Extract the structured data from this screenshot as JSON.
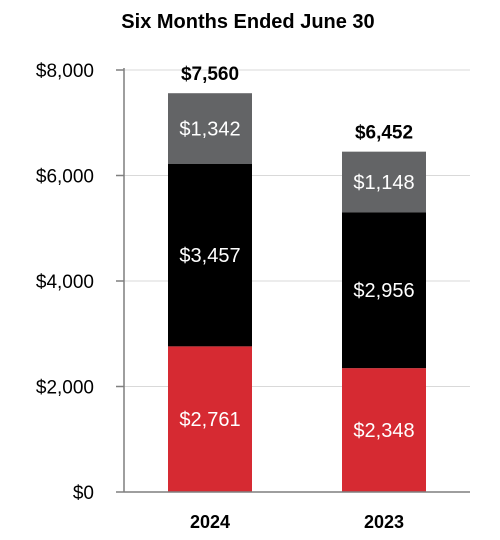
{
  "chart_data": {
    "type": "bar",
    "stacked": true,
    "title": "Six Months Ended June 30",
    "categories": [
      "2024",
      "2023"
    ],
    "series": [
      {
        "values": [
          2761,
          2348
        ],
        "labels": [
          "$2,761",
          "$2,348"
        ],
        "color": "#d62a32"
      },
      {
        "values": [
          3457,
          2956
        ],
        "labels": [
          "$3,457",
          "$2,956"
        ],
        "color": "#000000"
      },
      {
        "values": [
          1342,
          1148
        ],
        "labels": [
          "$1,342",
          "$1,148"
        ],
        "color": "#636466"
      }
    ],
    "totals": [
      7560,
      6452
    ],
    "total_labels": [
      "$7,560",
      "$6,452"
    ],
    "ylim": [
      0,
      8000
    ],
    "yticks": [
      0,
      2000,
      4000,
      6000,
      8000
    ],
    "ytick_labels": [
      "$0",
      "$2,000",
      "$4,000",
      "$6,000",
      "$8,000"
    ],
    "grid": true,
    "colors": {
      "grid": "#d9d9d9",
      "axis": "#7f7f7f",
      "segment_text": "#ffffff"
    }
  }
}
